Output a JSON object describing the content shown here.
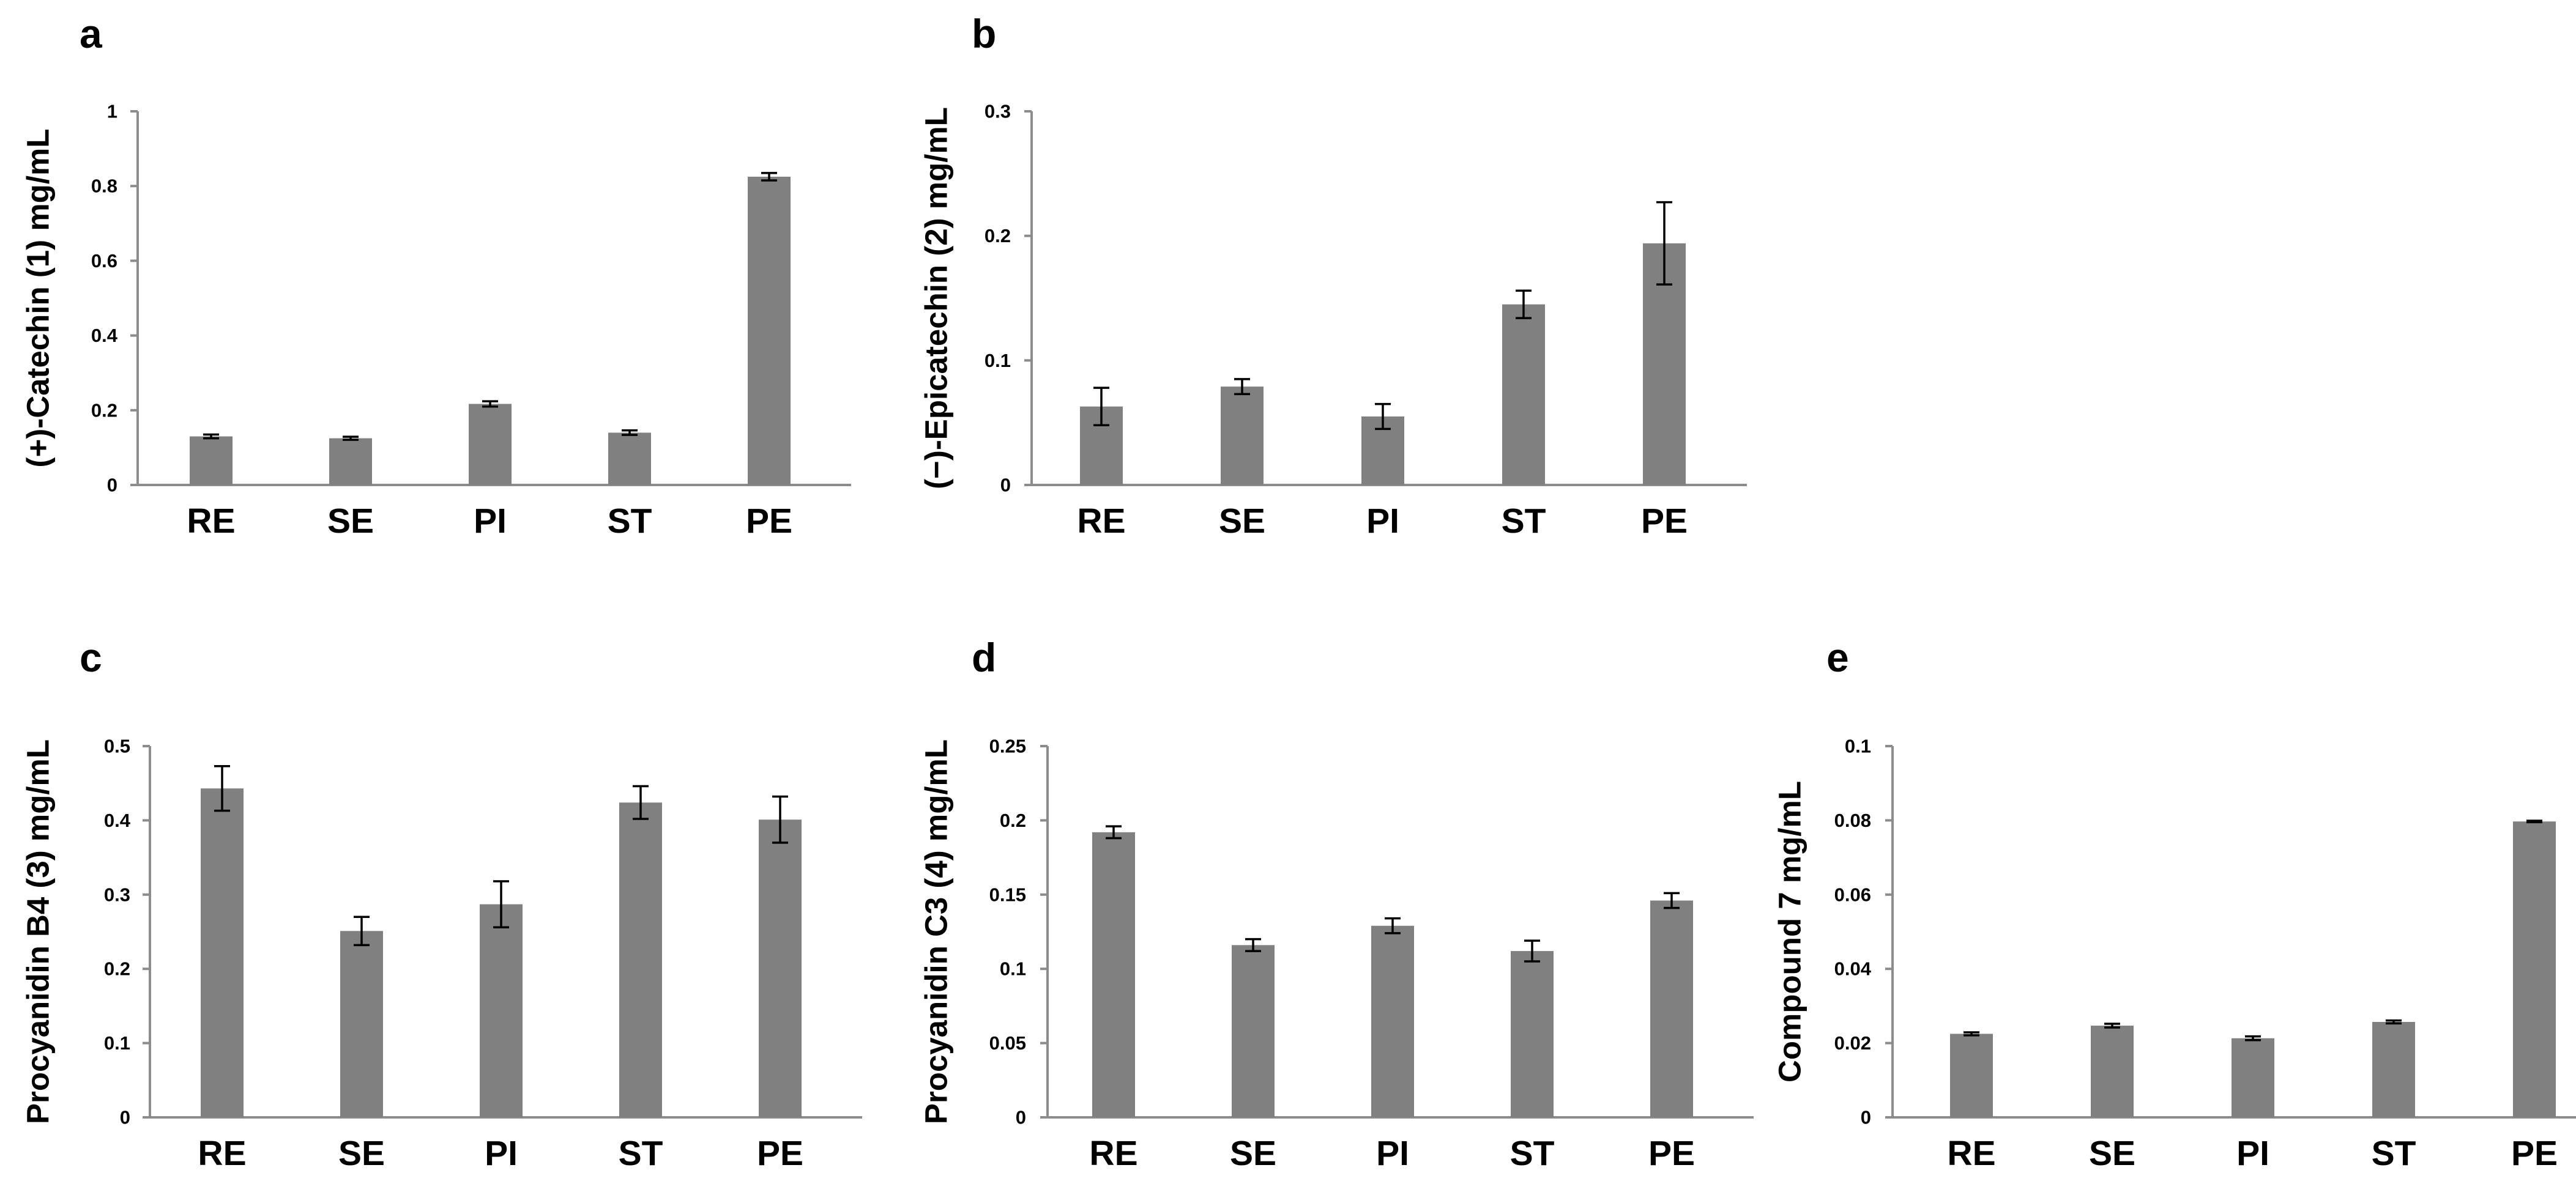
{
  "colors": {
    "bar": "#808080",
    "axis": "#8c8c8c",
    "error_bar": "#000000",
    "text": "#000000"
  },
  "chart_data": [
    {
      "panel": "a",
      "type": "bar",
      "ylabel": "(+)-Catechin (1) mg/mL",
      "categories": [
        "RE",
        "SE",
        "PI",
        "ST",
        "PE"
      ],
      "values": [
        0.13,
        0.125,
        0.217,
        0.14,
        0.825
      ],
      "errors": [
        0.005,
        0.004,
        0.007,
        0.006,
        0.01
      ],
      "ylim": [
        0,
        1
      ],
      "yticks": [
        0,
        0.2,
        0.4,
        0.6,
        0.8,
        1
      ],
      "ytick_labels": [
        "0",
        "0.2",
        "0.4",
        "0.6",
        "0.8",
        "1"
      ]
    },
    {
      "panel": "b",
      "type": "bar",
      "ylabel": "(−)-Epicatechin (2) mg/mL",
      "categories": [
        "RE",
        "SE",
        "PI",
        "ST",
        "PE"
      ],
      "values": [
        0.063,
        0.079,
        0.055,
        0.145,
        0.194
      ],
      "errors": [
        0.015,
        0.006,
        0.01,
        0.011,
        0.033
      ],
      "ylim": [
        0,
        0.3
      ],
      "yticks": [
        0,
        0.1,
        0.2,
        0.3
      ],
      "ytick_labels": [
        "0",
        "0.1",
        "0.2",
        "0.3"
      ]
    },
    {
      "panel": "c",
      "type": "bar",
      "ylabel": "Procyanidin B4 (3) mg/mL",
      "categories": [
        "RE",
        "SE",
        "PI",
        "ST",
        "PE"
      ],
      "values": [
        0.443,
        0.251,
        0.287,
        0.424,
        0.401
      ],
      "errors": [
        0.03,
        0.019,
        0.031,
        0.022,
        0.031
      ],
      "ylim": [
        0,
        0.5
      ],
      "yticks": [
        0,
        0.1,
        0.2,
        0.3,
        0.4,
        0.5
      ],
      "ytick_labels": [
        "0",
        "0.1",
        "0.2",
        "0.3",
        "0.4",
        "0.5"
      ]
    },
    {
      "panel": "d",
      "type": "bar",
      "ylabel": "Procyanidin C3 (4) mg/mL",
      "categories": [
        "RE",
        "SE",
        "PI",
        "ST",
        "PE"
      ],
      "values": [
        0.192,
        0.116,
        0.129,
        0.112,
        0.146
      ],
      "errors": [
        0.004,
        0.004,
        0.005,
        0.007,
        0.005
      ],
      "ylim": [
        0,
        0.25
      ],
      "yticks": [
        0,
        0.05,
        0.1,
        0.15,
        0.2,
        0.25
      ],
      "ytick_labels": [
        "0",
        "0.05",
        "0.1",
        "0.15",
        "0.2",
        "0.25"
      ]
    },
    {
      "panel": "e",
      "type": "bar",
      "ylabel": "Compound 7 mg/mL",
      "categories": [
        "RE",
        "SE",
        "PI",
        "ST",
        "PE"
      ],
      "values": [
        0.0225,
        0.0247,
        0.0213,
        0.0257,
        0.0797
      ],
      "errors": [
        0.0004,
        0.0005,
        0.0005,
        0.0004,
        0.0002
      ],
      "ylim": [
        0,
        0.1
      ],
      "yticks": [
        0,
        0.02,
        0.04,
        0.06,
        0.08,
        0.1
      ],
      "ytick_labels": [
        "0",
        "0.02",
        "0.04",
        "0.06",
        "0.08",
        "0.1"
      ]
    }
  ]
}
